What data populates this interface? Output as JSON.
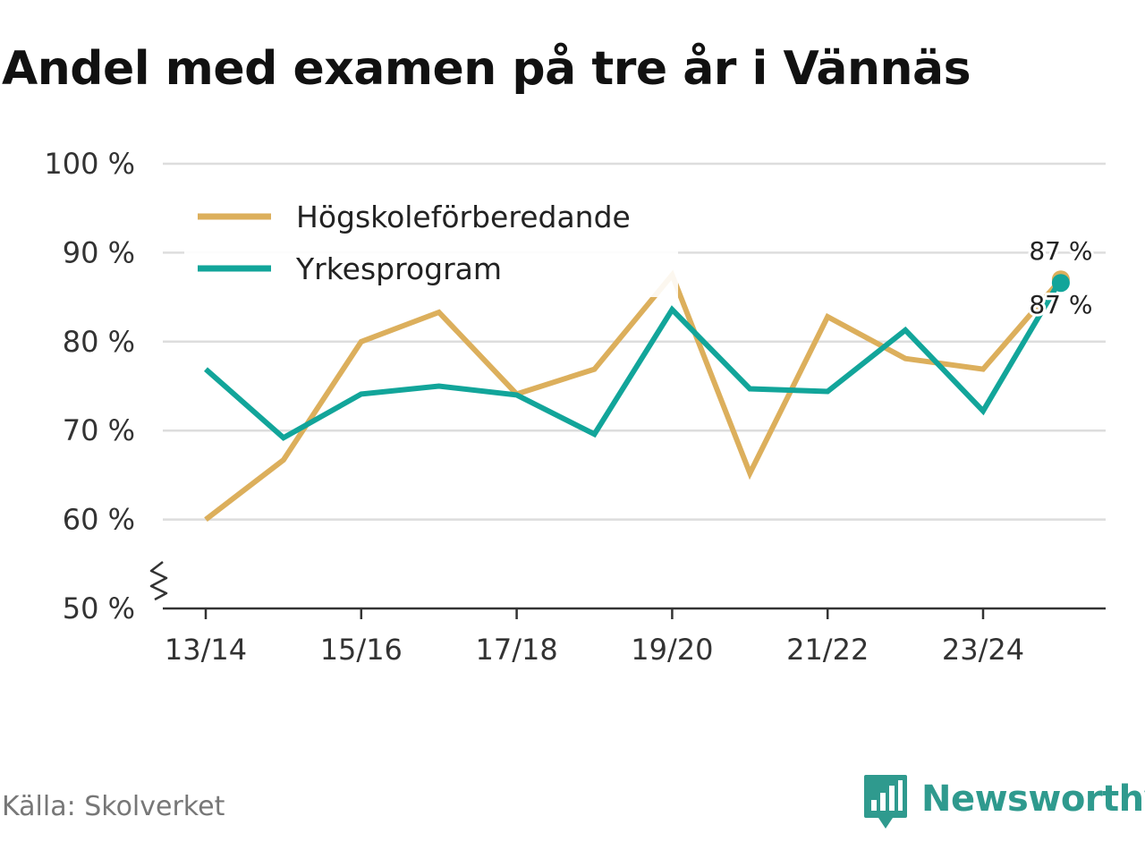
{
  "title": "Andel med examen på tre år i Vännäs",
  "source": "Källa: Skolverket",
  "brand": {
    "name": "Newsworthy",
    "color": "#2f9a8e"
  },
  "chart_data": {
    "type": "line",
    "title": "Andel med examen på tre år i Vännäs",
    "xlabel": "",
    "ylabel": "",
    "x": [
      "13/14",
      "14/15",
      "15/16",
      "16/17",
      "17/18",
      "18/19",
      "19/20",
      "20/21",
      "21/22",
      "22/23",
      "23/24",
      "24/25"
    ],
    "x_tick_labels": [
      "13/14",
      "15/16",
      "17/18",
      "19/20",
      "21/22",
      "23/24"
    ],
    "ylim": [
      50,
      100
    ],
    "y_ticks": [
      50,
      60,
      70,
      80,
      90,
      100
    ],
    "y_tick_labels": [
      "50 %",
      "60 %",
      "70 %",
      "80 %",
      "90 %",
      "100 %"
    ],
    "y_axis_break": true,
    "grid": true,
    "legend_position": "top-left",
    "series": [
      {
        "name": "Högskoleförberedande",
        "color": "#dcaf5c",
        "values": [
          60,
          66.7,
          80,
          83.3,
          74.1,
          76.9,
          87.5,
          65.2,
          82.8,
          78.1,
          76.9,
          87
        ],
        "end_label": "87 %"
      },
      {
        "name": "Yrkesprogram",
        "color": "#12a59a",
        "values": [
          76.9,
          69.2,
          74.1,
          75,
          74,
          69.6,
          83.6,
          74.7,
          74.4,
          81.3,
          72.2,
          87
        ],
        "end_label": "87 %"
      }
    ]
  }
}
